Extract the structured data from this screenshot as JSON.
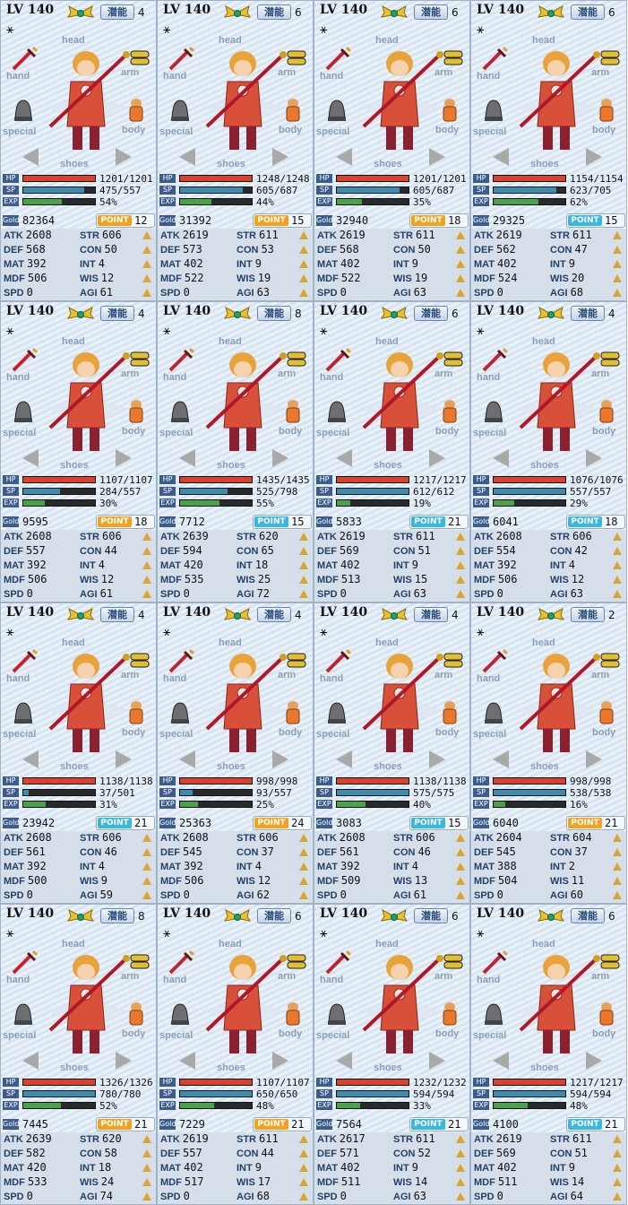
{
  "labels": {
    "lv": "LV",
    "qianneng": "潜能",
    "head": "head",
    "hand": "hand",
    "arm": "arm",
    "special": "special",
    "body": "body",
    "shoes": "shoes",
    "hp": "HP",
    "sp": "SP",
    "exp": "EXP",
    "gold": "Gold",
    "point": "POINT",
    "atk": "ATK",
    "def": "DEF",
    "mat": "MAT",
    "mdf": "MDF",
    "spd": "SPD",
    "str": "STR",
    "con": "CON",
    "int": "INT",
    "wis": "WIS",
    "agi": "AGI",
    "glyph": "⚹"
  },
  "colors": {
    "hp": "#d9432d",
    "sp": "#3a8db0",
    "exp": "#4ea04a",
    "point_orange": "#f2a21f",
    "point_blue": "#38b8e0"
  },
  "panels": [
    {
      "level": "140",
      "qn": "4",
      "hp": "1201/1201",
      "hp_frac": 1,
      "sp": "475/557",
      "sp_frac": 0.85,
      "exp": "54%",
      "exp_frac": 0.54,
      "gold": "82364",
      "point": "12",
      "point_color": "orange",
      "atk": "2608",
      "def": "568",
      "mat": "392",
      "mdf": "506",
      "spd": "0",
      "str": "606",
      "con": "50",
      "int": "4",
      "wis": "12",
      "agi": "61"
    },
    {
      "level": "140",
      "qn": "6",
      "hp": "1248/1248",
      "hp_frac": 1,
      "sp": "605/687",
      "sp_frac": 0.88,
      "exp": "44%",
      "exp_frac": 0.44,
      "gold": "31392",
      "point": "15",
      "point_color": "orange",
      "atk": "2619",
      "def": "573",
      "mat": "402",
      "mdf": "522",
      "spd": "0",
      "str": "611",
      "con": "53",
      "int": "9",
      "wis": "19",
      "agi": "63"
    },
    {
      "level": "140",
      "qn": "6",
      "hp": "1201/1201",
      "hp_frac": 1,
      "sp": "605/687",
      "sp_frac": 0.88,
      "exp": "35%",
      "exp_frac": 0.35,
      "gold": "32940",
      "point": "18",
      "point_color": "orange",
      "atk": "2619",
      "def": "568",
      "mat": "402",
      "mdf": "522",
      "spd": "0",
      "str": "611",
      "con": "50",
      "int": "9",
      "wis": "19",
      "agi": "63"
    },
    {
      "level": "140",
      "qn": "6",
      "hp": "1154/1154",
      "hp_frac": 1,
      "sp": "623/705",
      "sp_frac": 0.88,
      "exp": "62%",
      "exp_frac": 0.62,
      "gold": "29325",
      "point": "15",
      "point_color": "blue",
      "atk": "2619",
      "def": "562",
      "mat": "402",
      "mdf": "524",
      "spd": "0",
      "str": "611",
      "con": "47",
      "int": "9",
      "wis": "20",
      "agi": "68"
    },
    {
      "level": "140",
      "qn": "4",
      "hp": "1107/1107",
      "hp_frac": 1,
      "sp": "284/557",
      "sp_frac": 0.51,
      "exp": "30%",
      "exp_frac": 0.3,
      "gold": "9595",
      "point": "18",
      "point_color": "orange",
      "atk": "2608",
      "def": "557",
      "mat": "392",
      "mdf": "506",
      "spd": "0",
      "str": "606",
      "con": "44",
      "int": "4",
      "wis": "12",
      "agi": "61"
    },
    {
      "level": "140",
      "qn": "8",
      "hp": "1435/1435",
      "hp_frac": 1,
      "sp": "525/798",
      "sp_frac": 0.66,
      "exp": "55%",
      "exp_frac": 0.55,
      "gold": "7712",
      "point": "15",
      "point_color": "blue",
      "atk": "2639",
      "def": "594",
      "mat": "420",
      "mdf": "535",
      "spd": "0",
      "str": "620",
      "con": "65",
      "int": "18",
      "wis": "25",
      "agi": "72"
    },
    {
      "level": "140",
      "qn": "6",
      "hp": "1217/1217",
      "hp_frac": 1,
      "sp": "612/612",
      "sp_frac": 1,
      "exp": "19%",
      "exp_frac": 0.19,
      "gold": "5833",
      "point": "21",
      "point_color": "blue",
      "atk": "2619",
      "def": "569",
      "mat": "402",
      "mdf": "513",
      "spd": "0",
      "str": "611",
      "con": "51",
      "int": "9",
      "wis": "15",
      "agi": "63"
    },
    {
      "level": "140",
      "qn": "4",
      "hp": "1076/1076",
      "hp_frac": 1,
      "sp": "557/557",
      "sp_frac": 1,
      "exp": "29%",
      "exp_frac": 0.29,
      "gold": "6041",
      "point": "18",
      "point_color": "blue",
      "atk": "2608",
      "def": "554",
      "mat": "392",
      "mdf": "506",
      "spd": "0",
      "str": "606",
      "con": "42",
      "int": "4",
      "wis": "12",
      "agi": "63"
    },
    {
      "level": "140",
      "qn": "4",
      "hp": "1138/1138",
      "hp_frac": 1,
      "sp": "37/501",
      "sp_frac": 0.07,
      "exp": "31%",
      "exp_frac": 0.31,
      "gold": "23942",
      "point": "21",
      "point_color": "blue",
      "atk": "2608",
      "def": "561",
      "mat": "392",
      "mdf": "500",
      "spd": "0",
      "str": "606",
      "con": "46",
      "int": "4",
      "wis": "9",
      "agi": "59"
    },
    {
      "level": "140",
      "qn": "4",
      "hp": "998/998",
      "hp_frac": 1,
      "sp": "93/557",
      "sp_frac": 0.17,
      "exp": "25%",
      "exp_frac": 0.25,
      "gold": "25363",
      "point": "24",
      "point_color": "orange",
      "atk": "2608",
      "def": "545",
      "mat": "392",
      "mdf": "506",
      "spd": "0",
      "str": "606",
      "con": "37",
      "int": "4",
      "wis": "12",
      "agi": "62"
    },
    {
      "level": "140",
      "qn": "4",
      "hp": "1138/1138",
      "hp_frac": 1,
      "sp": "575/575",
      "sp_frac": 1,
      "exp": "40%",
      "exp_frac": 0.4,
      "gold": "3083",
      "point": "15",
      "point_color": "blue",
      "atk": "2608",
      "def": "561",
      "mat": "392",
      "mdf": "509",
      "spd": "0",
      "str": "606",
      "con": "46",
      "int": "4",
      "wis": "13",
      "agi": "61"
    },
    {
      "level": "140",
      "qn": "2",
      "hp": "998/998",
      "hp_frac": 1,
      "sp": "538/538",
      "sp_frac": 1,
      "exp": "16%",
      "exp_frac": 0.16,
      "gold": "6040",
      "point": "21",
      "point_color": "orange",
      "atk": "2604",
      "def": "545",
      "mat": "388",
      "mdf": "504",
      "spd": "0",
      "str": "604",
      "con": "37",
      "int": "2",
      "wis": "11",
      "agi": "60"
    },
    {
      "level": "140",
      "qn": "8",
      "hp": "1326/1326",
      "hp_frac": 1,
      "sp": "780/780",
      "sp_frac": 1,
      "exp": "52%",
      "exp_frac": 0.52,
      "gold": "7445",
      "point": "21",
      "point_color": "orange",
      "atk": "2639",
      "def": "582",
      "mat": "420",
      "mdf": "533",
      "spd": "0",
      "str": "620",
      "con": "58",
      "int": "18",
      "wis": "24",
      "agi": "74"
    },
    {
      "level": "140",
      "qn": "6",
      "hp": "1107/1107",
      "hp_frac": 1,
      "sp": "650/650",
      "sp_frac": 1,
      "exp": "48%",
      "exp_frac": 0.48,
      "gold": "7229",
      "point": "21",
      "point_color": "orange",
      "atk": "2619",
      "def": "557",
      "mat": "402",
      "mdf": "517",
      "spd": "0",
      "str": "611",
      "con": "44",
      "int": "9",
      "wis": "17",
      "agi": "68"
    },
    {
      "level": "140",
      "qn": "6",
      "hp": "1232/1232",
      "hp_frac": 1,
      "sp": "594/594",
      "sp_frac": 1,
      "exp": "33%",
      "exp_frac": 0.33,
      "gold": "7564",
      "point": "21",
      "point_color": "blue",
      "atk": "2617",
      "def": "571",
      "mat": "402",
      "mdf": "511",
      "spd": "0",
      "str": "611",
      "con": "52",
      "int": "9",
      "wis": "14",
      "agi": "63"
    },
    {
      "level": "140",
      "qn": "6",
      "hp": "1217/1217",
      "hp_frac": 1,
      "sp": "594/594",
      "sp_frac": 1,
      "exp": "48%",
      "exp_frac": 0.48,
      "gold": "4100",
      "point": "21",
      "point_color": "blue",
      "atk": "2619",
      "def": "569",
      "mat": "402",
      "mdf": "511",
      "spd": "0",
      "str": "611",
      "con": "51",
      "int": "9",
      "wis": "14",
      "agi": "64"
    }
  ]
}
